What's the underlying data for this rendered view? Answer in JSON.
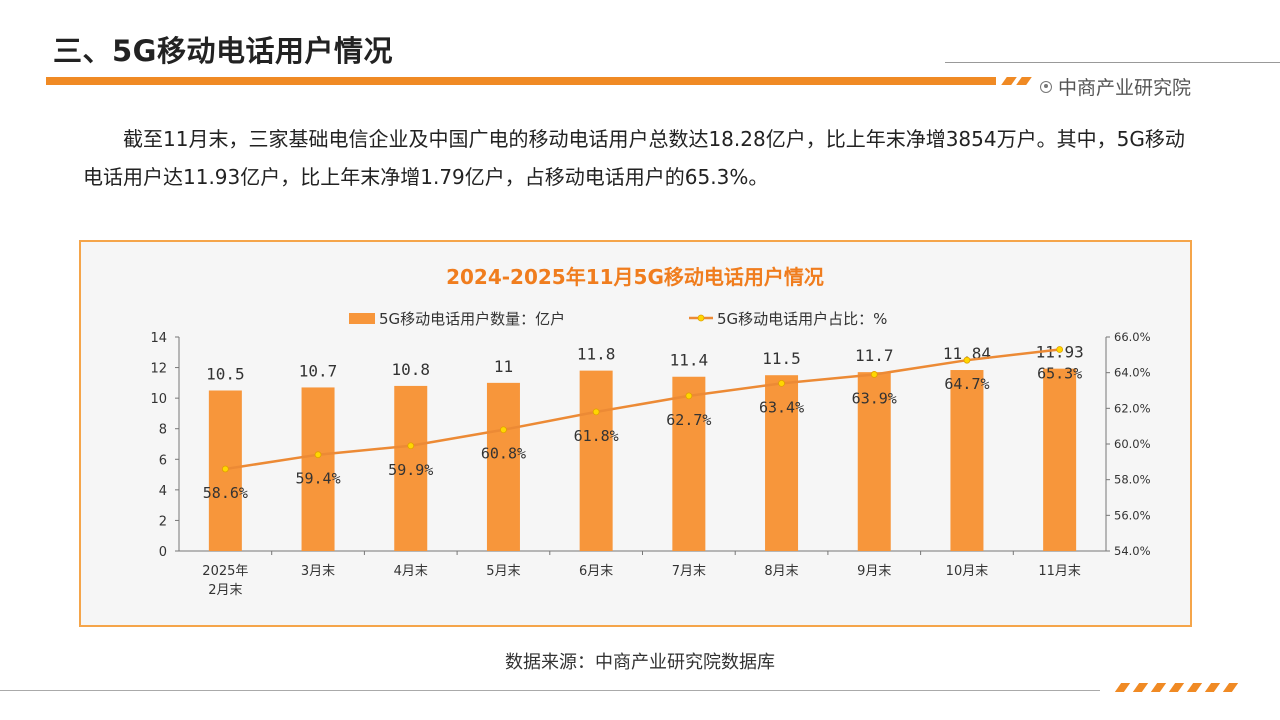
{
  "slide": {
    "title": "三、5G移动电话用户情况",
    "brand": "中商产业研究院",
    "paragraph": "截至11月末，三家基础电信企业及中国广电的移动电话用户总数达18.28亿户，比上年末净增3854万户。其中，5G移动电话用户达11.93亿户，比上年末净增1.79亿户，占移动电话用户的65.3%。",
    "source": "数据来源：中商产业研究院数据库"
  },
  "colors": {
    "accent": "#f08a24",
    "bar": "#f7963b",
    "line": "#ec8a35",
    "marker": "#ffd700",
    "title_text": "#f07d1e"
  },
  "chart_data": {
    "type": "bar",
    "title": "2024-2025年11月5G移动电话用户情况",
    "categories": [
      "2025年\n2月末",
      "3月末",
      "4月末",
      "5月末",
      "6月末",
      "7月末",
      "8月末",
      "9月末",
      "10月末",
      "11月末"
    ],
    "series": [
      {
        "name": "5G移动电话用户数量：亿户",
        "type": "bar",
        "axis": "left",
        "values": [
          10.5,
          10.7,
          10.8,
          11,
          11.8,
          11.4,
          11.5,
          11.7,
          11.84,
          11.93
        ],
        "labels": [
          "10.5",
          "10.7",
          "10.8",
          "11",
          "11.8",
          "11.4",
          "11.5",
          "11.7",
          "11.84",
          "11.93"
        ]
      },
      {
        "name": "5G移动电话用户占比：%",
        "type": "line",
        "axis": "right",
        "values": [
          58.6,
          59.4,
          59.9,
          60.8,
          61.8,
          62.7,
          63.4,
          63.9,
          64.7,
          65.3
        ],
        "labels": [
          "58.6%",
          "59.4%",
          "59.9%",
          "60.8%",
          "61.8%",
          "62.7%",
          "63.4%",
          "63.9%",
          "64.7%",
          "65.3%"
        ]
      }
    ],
    "y_left": {
      "min": 0,
      "max": 14,
      "ticks": [
        "0",
        "2",
        "4",
        "6",
        "8",
        "10",
        "12",
        "14"
      ]
    },
    "y_right": {
      "min": 54,
      "max": 66,
      "ticks": [
        "54.0%",
        "56.0%",
        "58.0%",
        "60.0%",
        "62.0%",
        "64.0%",
        "66.0%"
      ]
    },
    "legend": "top",
    "grid": false
  }
}
